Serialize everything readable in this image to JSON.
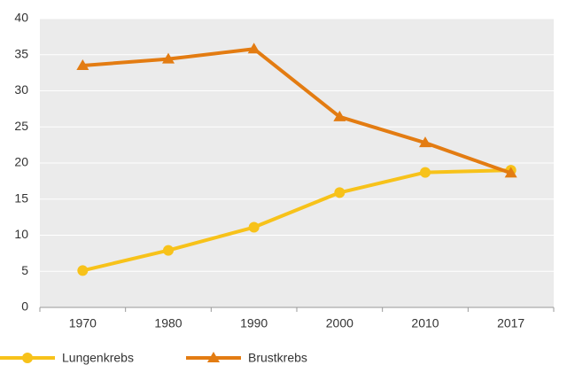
{
  "chart_data": {
    "type": "line",
    "categories": [
      "1970",
      "1980",
      "1990",
      "2000",
      "2010",
      "2017"
    ],
    "series": [
      {
        "name": "Lungenkrebs",
        "color": "#f7c21a",
        "marker": "circle",
        "values": [
          5.1,
          7.9,
          11.1,
          15.9,
          18.7,
          19.0
        ]
      },
      {
        "name": "Brustkrebs",
        "color": "#e37c12",
        "marker": "triangle",
        "values": [
          33.5,
          34.4,
          35.8,
          26.4,
          22.8,
          18.6
        ]
      }
    ],
    "ylim": [
      0,
      40
    ],
    "yticks": [
      0,
      5,
      10,
      15,
      20,
      25,
      30,
      35,
      40
    ],
    "grid": true,
    "legend": "bottom"
  }
}
